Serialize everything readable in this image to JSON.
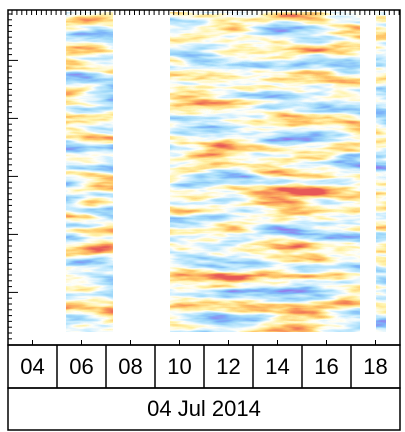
{
  "chart_data": {
    "type": "heatmap",
    "xlabel": "04 Jul 2014",
    "xlim": [
      3,
      19
    ],
    "xticks": [
      {
        "value": 4,
        "label": "04"
      },
      {
        "value": 6,
        "label": "06"
      },
      {
        "value": 8,
        "label": "08"
      },
      {
        "value": 10,
        "label": "10"
      },
      {
        "value": 12,
        "label": "12"
      },
      {
        "value": 14,
        "label": "14"
      },
      {
        "value": 16,
        "label": "16"
      },
      {
        "value": 18,
        "label": "18"
      }
    ]
  }
}
